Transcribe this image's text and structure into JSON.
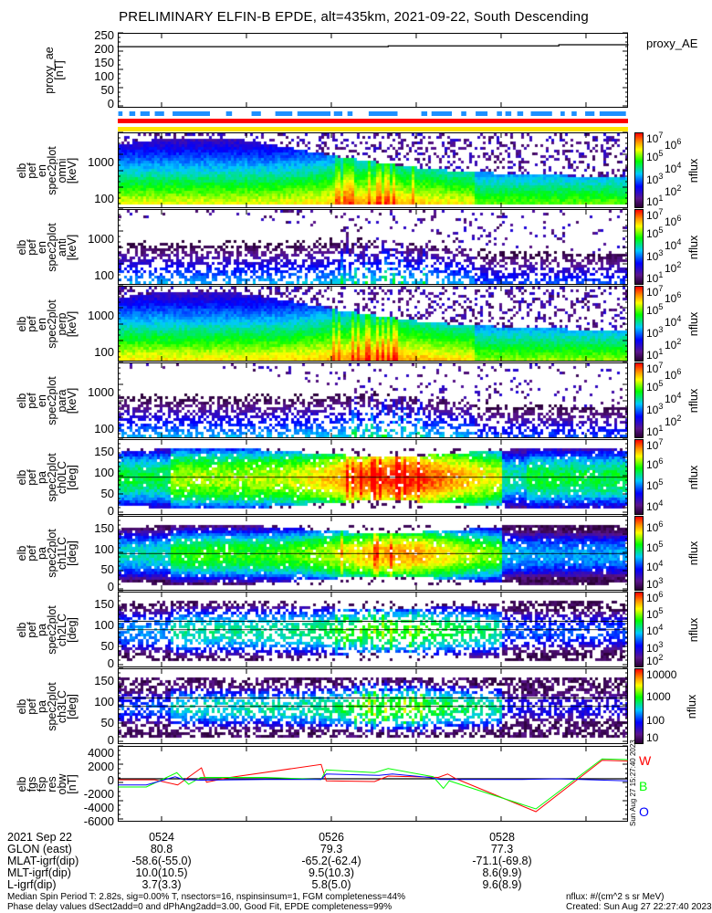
{
  "title": "PRELIMINARY ELFIN-B EPDE, alt=435km, 2021-09-22, South Descending",
  "panels": [
    {
      "id": "proxy_ae",
      "ylabel": [
        "proxy_ae",
        "[nT]"
      ],
      "yticks": [
        "250",
        "200",
        "150",
        "100",
        "50",
        "0"
      ],
      "legend": "proxy_AE"
    },
    {
      "id": "omni",
      "ylabel": [
        "elb",
        "pef",
        "en",
        "spec2plot",
        "omni",
        "[keV]"
      ],
      "yticks": [
        "1000",
        "100"
      ],
      "cbar": {
        "ticks": [
          "7",
          "6",
          "5",
          "4",
          "3",
          "2",
          "1"
        ],
        "label": "nflux"
      }
    },
    {
      "id": "anti",
      "ylabel": [
        "elb",
        "pef",
        "en",
        "spec2plot",
        "anti",
        "[keV]"
      ],
      "yticks": [
        "1000",
        "100"
      ],
      "cbar": {
        "ticks": [
          "7",
          "6",
          "5",
          "4",
          "3",
          "2",
          "1"
        ],
        "label": "nflux"
      }
    },
    {
      "id": "perp",
      "ylabel": [
        "elb",
        "pef",
        "en",
        "spec2plot",
        "perp",
        "[keV]"
      ],
      "yticks": [
        "1000",
        "100"
      ],
      "cbar": {
        "ticks": [
          "7",
          "6",
          "5",
          "4",
          "3",
          "2",
          "1"
        ],
        "label": "nflux"
      }
    },
    {
      "id": "para",
      "ylabel": [
        "elb",
        "pef",
        "en",
        "spec2plot",
        "para",
        "[keV]"
      ],
      "yticks": [
        "1000",
        "100"
      ],
      "cbar": {
        "ticks": [
          "7",
          "6",
          "5",
          "4",
          "3",
          "2",
          "1"
        ],
        "label": "nflux"
      }
    },
    {
      "id": "ch0LC",
      "ylabel": [
        "elb",
        "pef",
        "pa",
        "spec2plot",
        "ch0LC",
        "[deg]"
      ],
      "yticks": [
        "150",
        "100",
        "50",
        "0"
      ],
      "cbar": {
        "ticks": [
          "7",
          "6",
          "5",
          "4"
        ],
        "label": "nflux"
      }
    },
    {
      "id": "ch1LC",
      "ylabel": [
        "elb",
        "pef",
        "pa",
        "spec2plot",
        "ch1LC",
        "[deg]"
      ],
      "yticks": [
        "150",
        "100",
        "50",
        "0"
      ],
      "cbar": {
        "ticks": [
          "6",
          "5",
          "4",
          "3"
        ],
        "label": "nflux"
      }
    },
    {
      "id": "ch2LC",
      "ylabel": [
        "elb",
        "pef",
        "pa",
        "spec2plot",
        "ch2LC",
        "[deg]"
      ],
      "yticks": [
        "150",
        "100",
        "50",
        "0"
      ],
      "cbar": {
        "ticks": [
          "6",
          "5",
          "4",
          "3",
          "2"
        ],
        "label": "nflux"
      }
    },
    {
      "id": "ch3LC",
      "ylabel": [
        "elb",
        "pef",
        "pa",
        "spec2plot",
        "ch3LC",
        "[deg]"
      ],
      "yticks": [
        "150",
        "100",
        "50",
        "0"
      ],
      "cbar": {
        "plain": [
          "10000",
          "1000",
          "100",
          "10"
        ],
        "label": "nflux"
      }
    },
    {
      "id": "fgs",
      "ylabel": [
        "elb",
        "fgs",
        "fsp",
        "res",
        "obw",
        "[nT]"
      ],
      "yticks": [
        "4000",
        "2000",
        "0",
        "-2000",
        "-4000",
        "-6000"
      ],
      "legend_letters": [
        "W",
        "B",
        "O"
      ]
    }
  ],
  "colors": {
    "W": "#ff0000",
    "B": "#00ff00",
    "O": "#0000ff",
    "blue_bar": "#1e90ff",
    "red_bar": "#ff0000",
    "yellow_bar": "#ffe600"
  },
  "chart_data": [
    {
      "type": "line",
      "title": "proxy_AE",
      "ylabel": "proxy_ae [nT]",
      "ylim": [
        -10,
        260
      ],
      "x_units": "minutes after 05:00 UT",
      "x": [
        23.48,
        26.67,
        26.67,
        28.68,
        28.68,
        29.5
      ],
      "values": [
        210,
        210,
        213,
        213,
        217,
        217
      ]
    },
    {
      "type": "line",
      "title": "elb fgs fsp res obw [nT]",
      "ylim": [
        -6500,
        4500
      ],
      "x_units": "minutes after 05:00 UT",
      "series": [
        {
          "name": "W",
          "color": "#ff0000",
          "x": [
            23.49,
            23.92,
            24.19,
            24.47,
            24.53,
            24.78,
            25.88,
            25.94,
            26.51,
            26.67,
            27.26,
            27.37,
            27.47,
            28.41,
            29.19,
            29.49
          ],
          "values": [
            -150,
            -150,
            -900,
            1600,
            -500,
            150,
            2100,
            -300,
            -400,
            400,
            200,
            700,
            0,
            -4800,
            2700,
            2600
          ]
        },
        {
          "name": "B",
          "color": "#00ff00",
          "x": [
            23.49,
            23.82,
            24.18,
            24.25,
            24.32,
            24.46,
            25.22,
            25.88,
            25.94,
            26.51,
            26.67,
            27.2,
            27.32,
            27.39,
            28.41,
            29.19,
            29.49
          ],
          "values": [
            -1200,
            -1200,
            900,
            0,
            -800,
            200,
            200,
            -100,
            1300,
            900,
            1500,
            300,
            -1400,
            -300,
            -4400,
            2900,
            2800
          ]
        },
        {
          "name": "O",
          "color": "#0000ff",
          "x": [
            23.49,
            23.82,
            24.16,
            24.25,
            24.46,
            25.22,
            25.88,
            25.94,
            26.56,
            26.72,
            27.15,
            27.28,
            28.23,
            28.66,
            29.49
          ],
          "values": [
            -900,
            -900,
            300,
            -100,
            -200,
            -100,
            -100,
            700,
            500,
            700,
            200,
            -100,
            -100,
            0,
            -300
          ]
        }
      ]
    },
    {
      "type": "heatmap",
      "title": "elb pef en/pa spec2plot panels",
      "zlabel": "nflux",
      "energy_ylim_keV": [
        56,
        6700
      ],
      "pa_ylim_deg": [
        0,
        180
      ]
    }
  ],
  "spin_bar_segments": [
    [
      23.49,
      23.54
    ],
    [
      23.62,
      23.69
    ],
    [
      23.75,
      23.86
    ],
    [
      23.92,
      24.03
    ],
    [
      24.13,
      24.57
    ],
    [
      24.76,
      24.83
    ],
    [
      25.06,
      25.17
    ],
    [
      25.34,
      25.54
    ],
    [
      25.6,
      25.99
    ],
    [
      26.03,
      26.13
    ],
    [
      26.19,
      26.25
    ],
    [
      26.44,
      26.78
    ],
    [
      27.06,
      27.13
    ],
    [
      27.18,
      27.42
    ],
    [
      27.53,
      27.59
    ],
    [
      27.7,
      27.84
    ],
    [
      27.95,
      28.01
    ],
    [
      28.05,
      28.12
    ],
    [
      28.19,
      28.26
    ],
    [
      28.35,
      28.6
    ],
    [
      28.7,
      28.75
    ],
    [
      28.83,
      28.89
    ],
    [
      28.99,
      29.1
    ],
    [
      29.16,
      29.47
    ]
  ],
  "info": {
    "rows": [
      {
        "label": "2021 Sep 22",
        "values": [
          "0524",
          "0526",
          "0528"
        ]
      },
      {
        "label": "GLON (east)",
        "values": [
          "80.8",
          "79.3",
          "77.3"
        ]
      },
      {
        "label": "MLAT-igrf(dip)",
        "values": [
          "-58.6(-55.0)",
          "-65.2(-62.4)",
          "-71.1(-69.8)"
        ]
      },
      {
        "label": "MLT-igrf(dip)",
        "values": [
          "10.0(10.5)",
          "9.5(10.3)",
          "8.6(9.9)"
        ]
      },
      {
        "label": "L-igrf(dip)",
        "values": [
          "3.7(3.3)",
          "5.8(5.0)",
          "9.6(8.9)"
        ]
      }
    ],
    "footer_left": [
      "Median Spin Period T: 2.82s, sig=0.00% T, nsectors=16, nspinsinsum=1, FGM completeness=44%",
      "Phase delay values dSect2add=0 and dPhAng2add=3.00, Good Fit, EPDE completeness=99%"
    ],
    "footer_right": [
      "nflux: #/(cm^2 s sr MeV)",
      "Created: Sun Aug 27 22:27:40 2023"
    ],
    "created_vertical": "Sun Aug 27 15:27:40 2023"
  }
}
